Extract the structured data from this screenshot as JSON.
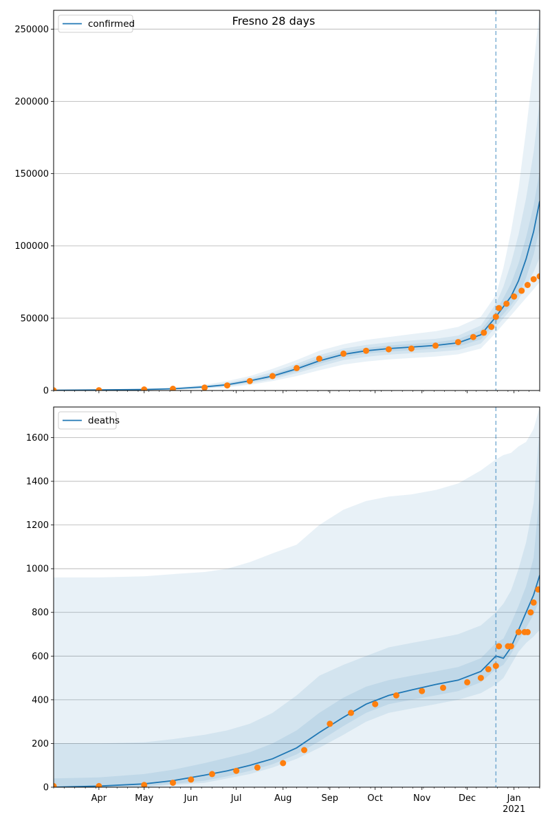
{
  "colors": {
    "model": "#1f77b4",
    "observed": "#ff7f0e",
    "band": "#1f77b4",
    "grid": "#b0b0b0"
  },
  "chart_data": [
    {
      "type": "line",
      "title": "Fresno 28 days",
      "legend": {
        "label": "confirmed",
        "placement": "top-left"
      },
      "grid": "horizontal",
      "x_type": "date",
      "xlim": [
        "2020-03-02",
        "2021-01-18"
      ],
      "x_tick_labels": [],
      "forecast_start": "2020-12-20",
      "ylim": [
        0,
        263000
      ],
      "y_ticks": [
        0,
        50000,
        100000,
        150000,
        200000,
        250000
      ],
      "y_tick_labels": [
        "0",
        "50000",
        "100000",
        "150000",
        "200000",
        "250000"
      ],
      "model_median": {
        "x": [
          "2020-03-02",
          "2020-04-01",
          "2020-05-01",
          "2020-05-20",
          "2020-06-10",
          "2020-06-25",
          "2020-07-10",
          "2020-07-25",
          "2020-08-10",
          "2020-08-25",
          "2020-09-10",
          "2020-09-25",
          "2020-10-10",
          "2020-10-25",
          "2020-11-10",
          "2020-11-25",
          "2020-12-10",
          "2020-12-20",
          "2020-12-25",
          "2020-12-30",
          "2021-01-04",
          "2021-01-09",
          "2021-01-14",
          "2021-01-18"
        ],
        "y": [
          200,
          400,
          700,
          1200,
          2500,
          4000,
          6700,
          10000,
          15000,
          20500,
          25000,
          27500,
          29000,
          30000,
          31200,
          33000,
          38500,
          51000,
          58000,
          65000,
          76000,
          91000,
          110000,
          131000
        ]
      },
      "bands": [
        {
          "level": "outer",
          "upper": [
            500,
            700,
            1100,
            2000,
            4000,
            6500,
            10000,
            15000,
            21000,
            27500,
            32000,
            35000,
            37000,
            39000,
            41000,
            44000,
            51000,
            66000,
            85000,
            110000,
            140000,
            180000,
            225000,
            263000
          ],
          "lower": [
            0,
            100,
            300,
            600,
            1200,
            2200,
            4000,
            6500,
            10000,
            14000,
            18000,
            20000,
            21500,
            22500,
            23500,
            25000,
            29000,
            40000,
            46000,
            52000,
            58000,
            64000,
            70000,
            75000
          ]
        },
        {
          "level": "middle",
          "upper": [
            400,
            600,
            900,
            1600,
            3300,
            5300,
            8500,
            12800,
            18500,
            24500,
            29000,
            31500,
            33300,
            34600,
            35700,
            38000,
            45000,
            60000,
            72000,
            88000,
            108000,
            133000,
            165000,
            200000
          ],
          "lower": [
            50,
            200,
            450,
            800,
            1700,
            2900,
            5000,
            7800,
            12000,
            16500,
            21000,
            23300,
            24800,
            25800,
            26700,
            28000,
            32500,
            44000,
            50000,
            56000,
            63000,
            72000,
            82000,
            92000
          ]
        },
        {
          "level": "inner",
          "upper": [
            300,
            500,
            800,
            1400,
            2900,
            4600,
            7500,
            11300,
            16800,
            22500,
            27000,
            29500,
            31100,
            32200,
            33400,
            35500,
            41800,
            55000,
            64000,
            74000,
            88000,
            106000,
            128000,
            152000
          ],
          "lower": [
            100,
            300,
            600,
            1000,
            2100,
            3400,
            5900,
            8800,
            13300,
            18500,
            23000,
            25500,
            26900,
            27800,
            29000,
            30500,
            35300,
            47000,
            53000,
            59000,
            66000,
            78000,
            94000,
            112000
          ]
        }
      ],
      "observed": {
        "x": [
          "2020-03-02",
          "2020-04-01",
          "2020-05-01",
          "2020-05-20",
          "2020-06-10",
          "2020-06-25",
          "2020-07-10",
          "2020-07-25",
          "2020-08-10",
          "2020-08-25",
          "2020-09-10",
          "2020-09-25",
          "2020-10-10",
          "2020-10-25",
          "2020-11-10",
          "2020-11-25",
          "2020-12-05",
          "2020-12-12",
          "2020-12-17",
          "2020-12-20",
          "2020-12-22",
          "2020-12-27",
          "2021-01-01",
          "2021-01-06",
          "2021-01-10",
          "2021-01-14",
          "2021-01-18"
        ],
        "y": [
          100,
          200,
          700,
          1200,
          2000,
          3500,
          6500,
          10000,
          15500,
          22000,
          25500,
          27500,
          28500,
          29000,
          31000,
          33500,
          37000,
          40000,
          44000,
          51000,
          57000,
          60000,
          65000,
          69000,
          73000,
          77000,
          79000
        ]
      }
    },
    {
      "type": "line",
      "title": "",
      "legend": {
        "label": "deaths",
        "placement": "top-left"
      },
      "grid": "horizontal",
      "x_type": "date",
      "xlim": [
        "2020-03-02",
        "2021-01-18"
      ],
      "x_tick_labels": [
        "Apr",
        "May",
        "Jun",
        "Jul",
        "Aug",
        "Sep",
        "Oct",
        "Nov",
        "Dec",
        "Jan\n2021"
      ],
      "forecast_start": "2020-12-20",
      "ylim": [
        0,
        1740
      ],
      "y_ticks": [
        0,
        200,
        400,
        600,
        800,
        1000,
        1200,
        1400,
        1600
      ],
      "y_tick_labels": [
        "0",
        "200",
        "400",
        "600",
        "800",
        "1000",
        "1200",
        "1400",
        "1600"
      ],
      "model_median": {
        "x": [
          "2020-03-02",
          "2020-04-01",
          "2020-05-01",
          "2020-05-20",
          "2020-06-10",
          "2020-06-25",
          "2020-07-10",
          "2020-07-25",
          "2020-08-10",
          "2020-08-25",
          "2020-09-10",
          "2020-09-25",
          "2020-10-10",
          "2020-10-25",
          "2020-11-10",
          "2020-11-25",
          "2020-12-10",
          "2020-12-20",
          "2020-12-25",
          "2020-12-30",
          "2021-01-04",
          "2021-01-09",
          "2021-01-14",
          "2021-01-18"
        ],
        "y": [
          0,
          5,
          15,
          30,
          55,
          75,
          100,
          130,
          180,
          250,
          320,
          380,
          420,
          445,
          470,
          490,
          530,
          600,
          590,
          640,
          720,
          800,
          880,
          970
        ]
      },
      "bands": [
        {
          "level": "outer",
          "upper": [
            960,
            960,
            965,
            975,
            985,
            1000,
            1030,
            1070,
            1110,
            1200,
            1270,
            1310,
            1330,
            1340,
            1360,
            1390,
            1450,
            1500,
            1520,
            1530,
            1560,
            1580,
            1640,
            1740
          ],
          "lower": [
            0,
            0,
            0,
            0,
            0,
            0,
            0,
            0,
            0,
            0,
            0,
            0,
            0,
            0,
            0,
            0,
            0,
            0,
            0,
            0,
            0,
            0,
            0,
            0
          ]
        },
        {
          "level": "middle",
          "upper": [
            200,
            200,
            205,
            220,
            240,
            260,
            290,
            340,
            420,
            510,
            560,
            600,
            640,
            660,
            680,
            700,
            740,
            800,
            840,
            900,
            1000,
            1120,
            1300,
            1650
          ],
          "lower": [
            0,
            0,
            0,
            10,
            20,
            40,
            60,
            90,
            130,
            180,
            240,
            300,
            340,
            360,
            380,
            400,
            430,
            470,
            500,
            560,
            620,
            660,
            690,
            720
          ]
        },
        {
          "level": "inner",
          "upper": [
            40,
            45,
            60,
            80,
            110,
            135,
            160,
            200,
            260,
            340,
            410,
            460,
            490,
            510,
            530,
            550,
            590,
            660,
            680,
            750,
            830,
            920,
            1050,
            1350
          ],
          "lower": [
            0,
            0,
            5,
            15,
            30,
            50,
            75,
            105,
            150,
            210,
            280,
            340,
            380,
            400,
            420,
            440,
            480,
            540,
            560,
            610,
            670,
            730,
            790,
            860
          ]
        }
      ],
      "observed": {
        "x": [
          "2020-03-02",
          "2020-04-01",
          "2020-05-01",
          "2020-05-20",
          "2020-06-01",
          "2020-06-15",
          "2020-07-01",
          "2020-07-15",
          "2020-08-01",
          "2020-08-15",
          "2020-09-01",
          "2020-09-15",
          "2020-10-01",
          "2020-10-15",
          "2020-11-01",
          "2020-11-15",
          "2020-12-01",
          "2020-12-10",
          "2020-12-15",
          "2020-12-20",
          "2020-12-22",
          "2020-12-28",
          "2020-12-30",
          "2021-01-04",
          "2021-01-08",
          "2021-01-10",
          "2021-01-12",
          "2021-01-14",
          "2021-01-17"
        ],
        "y": [
          5,
          5,
          10,
          20,
          35,
          60,
          75,
          90,
          110,
          170,
          290,
          340,
          380,
          420,
          440,
          455,
          480,
          500,
          540,
          555,
          645,
          645,
          645,
          710,
          710,
          710,
          800,
          845,
          905
        ]
      }
    }
  ]
}
